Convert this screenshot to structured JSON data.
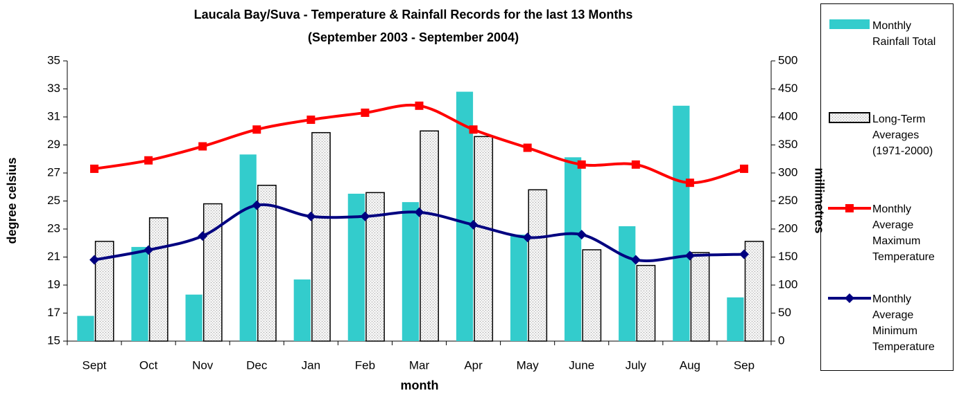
{
  "chart_data": {
    "type": "bar",
    "title": "Laucala Bay/Suva - Temperature & Rainfall Records for the last 13 Months",
    "subtitle": "(September 2003 - September 2004)",
    "xlabel": "month",
    "ylabel": "degree celsius",
    "y2label": "millimetres",
    "categories": [
      "Sept",
      "Oct",
      "Nov",
      "Dec",
      "Jan",
      "Feb",
      "Mar",
      "Apr",
      "May",
      "June",
      "July",
      "Aug",
      "Sep"
    ],
    "ylim": [
      15,
      35
    ],
    "yticks": [
      15,
      17,
      19,
      21,
      23,
      25,
      27,
      29,
      31,
      33,
      35
    ],
    "y2lim": [
      0,
      500
    ],
    "y2ticks": [
      0,
      50,
      100,
      150,
      200,
      250,
      300,
      350,
      400,
      450,
      500
    ],
    "grid": false,
    "legend": "right",
    "series": [
      {
        "name": "Monthly Rainfall Total",
        "type": "bar",
        "axis": "y2",
        "color": "#33cccc",
        "values": [
          45,
          168,
          83,
          333,
          110,
          263,
          248,
          445,
          190,
          328,
          205,
          420,
          78
        ]
      },
      {
        "name": "Long-Term Averages (1971-2000)",
        "type": "bar",
        "axis": "y2",
        "color": "#e6e6e6",
        "values": [
          178,
          220,
          245,
          278,
          372,
          265,
          375,
          365,
          270,
          163,
          135,
          158,
          178
        ]
      },
      {
        "name": "Monthly Average Maximum Temperature",
        "type": "line",
        "marker": "square",
        "color": "#ff0000",
        "values": [
          27.3,
          27.9,
          28.9,
          30.1,
          30.8,
          31.3,
          31.8,
          30.1,
          28.8,
          27.6,
          27.6,
          26.3,
          27.3
        ]
      },
      {
        "name": "Monthly Average Minimum Temperature",
        "type": "line",
        "marker": "diamond",
        "color": "#000080",
        "values": [
          20.8,
          21.5,
          22.5,
          24.7,
          23.9,
          23.9,
          24.2,
          23.3,
          22.4,
          22.6,
          20.8,
          21.1,
          21.2
        ]
      }
    ]
  }
}
